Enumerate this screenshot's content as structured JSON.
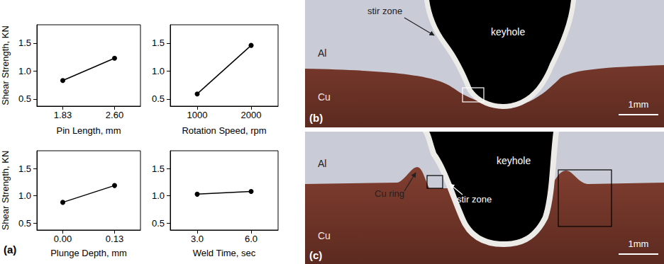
{
  "chart_data": [
    {
      "type": "line",
      "x_label": "Pin Length, mm",
      "y_label": "Shear Strength, KN",
      "categories": [
        "1.83",
        "2.60"
      ],
      "values": [
        0.83,
        1.23
      ],
      "color": "#000000",
      "marker": "circle",
      "ylim": [
        0.37,
        1.83
      ],
      "yticks": [
        0.5,
        {
          "value": 1,
          "label": "1.0"
        },
        1.5
      ],
      "grid": false
    },
    {
      "type": "line",
      "x_label": "Rotation Speed, rpm",
      "categories": [
        "1000",
        "2000"
      ],
      "values": [
        0.59,
        1.46
      ],
      "color": "#000000",
      "marker": "circle",
      "ylim": [
        0.37,
        1.83
      ],
      "yticks": [
        0.5,
        {
          "value": 1,
          "label": "1.0"
        },
        1.5
      ],
      "grid": false
    },
    {
      "type": "line",
      "x_label": "Plunge Depth, mm",
      "y_label": "Shear Strength, KN",
      "categories": [
        "0.00",
        "0.13"
      ],
      "values": [
        0.88,
        1.19
      ],
      "color": "#000000",
      "marker": "circle",
      "ylim": [
        0.37,
        1.83
      ],
      "yticks": [
        0.5,
        {
          "value": 1,
          "label": "1.0"
        },
        1.5
      ],
      "grid": false
    },
    {
      "type": "line",
      "x_label": "Weld Time, sec",
      "categories": [
        "3.0",
        "6.0"
      ],
      "values": [
        1.03,
        1.08
      ],
      "color": "#000000",
      "marker": "circle",
      "ylim": [
        0.37,
        1.83
      ],
      "yticks": [
        0.5,
        {
          "value": 1,
          "label": "1.0"
        },
        1.5
      ],
      "grid": false
    }
  ],
  "panel_label": "(a)",
  "micrographs": [
    {
      "label": "(b)",
      "al": "Al",
      "cu": "Cu",
      "keyhole": "keyhole",
      "stir_zone": "stir zone",
      "scale_bar": "1mm"
    },
    {
      "label": "(c)",
      "al": "Al",
      "cu": "Cu",
      "keyhole": "keyhole",
      "stir_zone": "stir zone",
      "cu_ring": "Cu ring",
      "scale_bar": "1mm"
    }
  ]
}
